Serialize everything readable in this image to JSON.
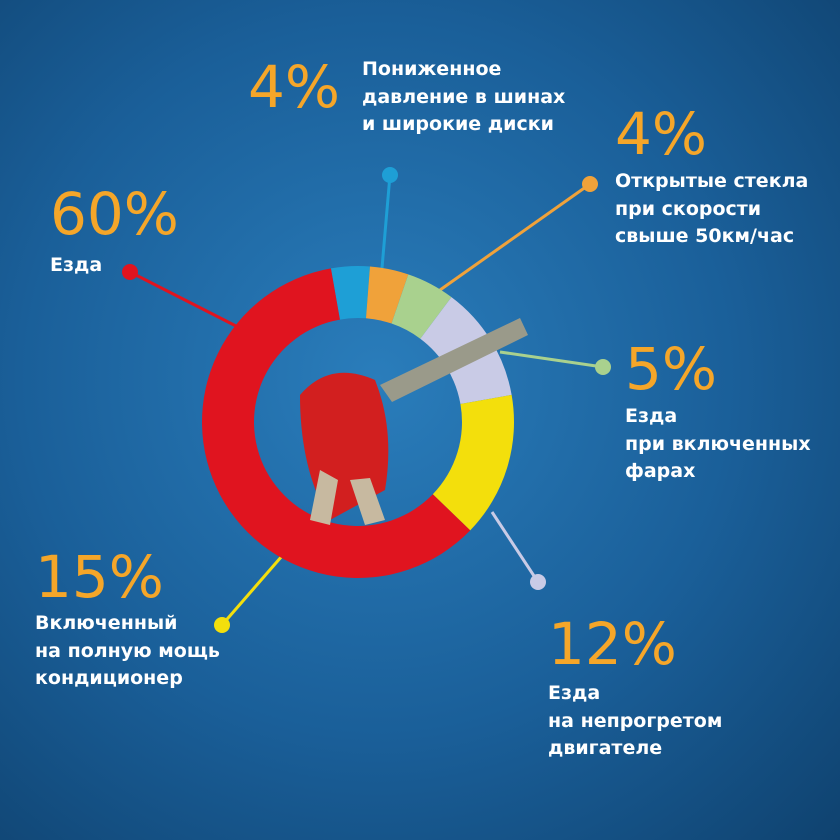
{
  "chart_data": {
    "type": "donut",
    "categories": [
      "Пониженное\nдавление в шинах\nи широкие диски",
      "Открытые стекла\nпри скорости\nсвыше 50км/час",
      "Езда\nпри включенных\nфарах",
      "Езда\nна непрогретом\nдвигателе",
      "Включенный\nна полную мощь\nкондиционер",
      "Езда"
    ],
    "values": [
      4,
      4,
      5,
      12,
      15,
      60
    ],
    "value_labels": [
      "4%",
      "4%",
      "5%",
      "12%",
      "15%",
      "60%"
    ],
    "colors": [
      "#1e9fd6",
      "#f0a23a",
      "#a9d18e",
      "#c9cbe6",
      "#f3df0c",
      "#e0141f"
    ]
  }
}
